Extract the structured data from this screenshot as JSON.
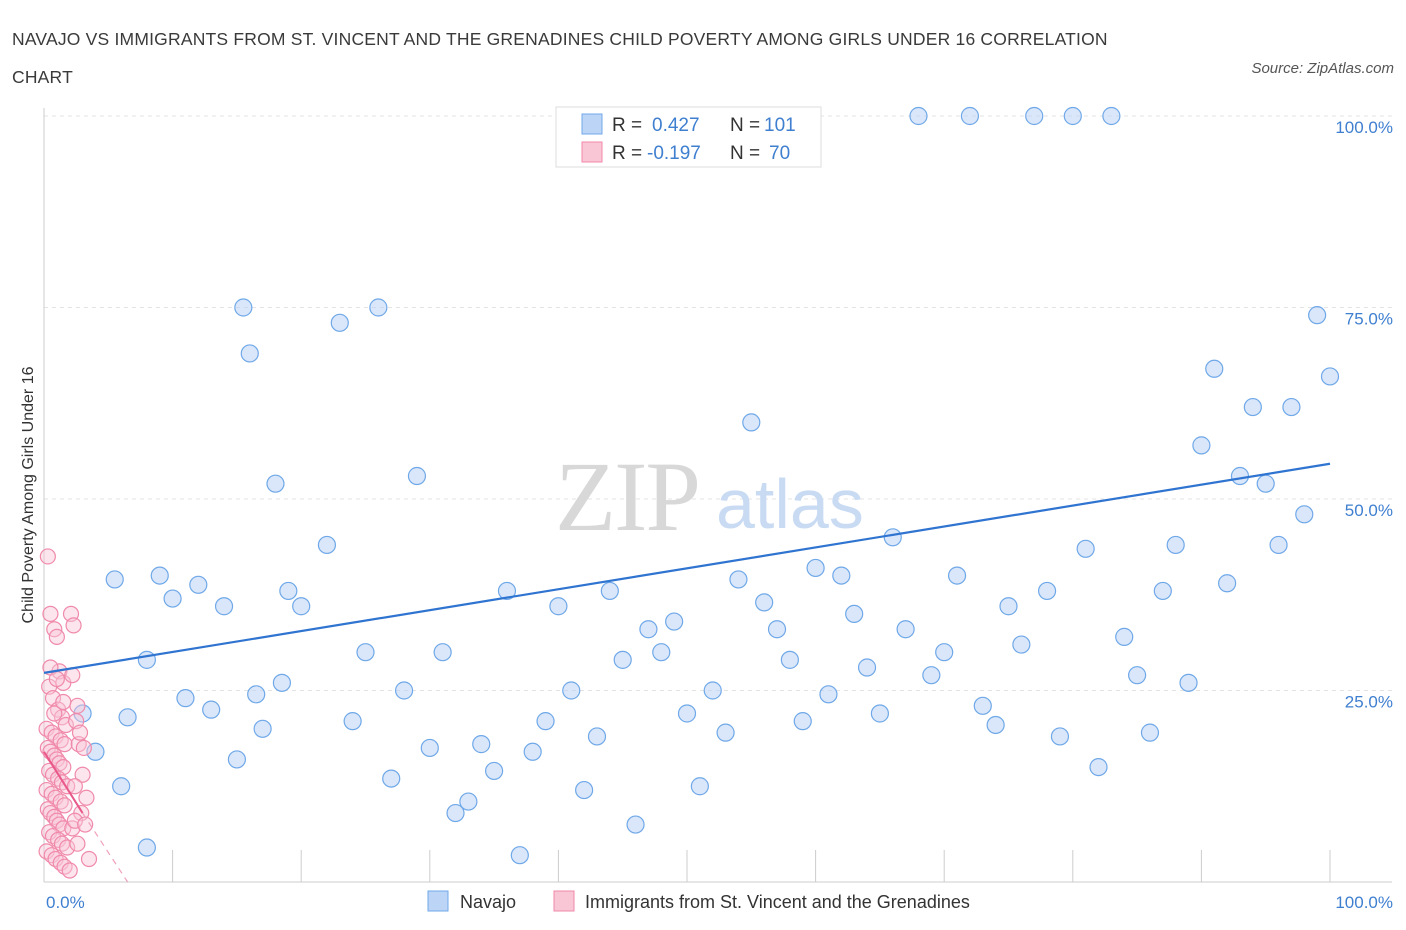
{
  "title": "NAVAJO VS IMMIGRANTS FROM ST. VINCENT AND THE GRENADINES CHILD POVERTY AMONG GIRLS UNDER 16 CORRELATION CHART",
  "source": "Source: ZipAtlas.com",
  "watermark": {
    "zip": "ZIP",
    "atlas": "atlas"
  },
  "chart_data": {
    "type": "scatter",
    "title": "NAVAJO VS IMMIGRANTS FROM ST. VINCENT AND THE GRENADINES CHILD POVERTY AMONG GIRLS UNDER 16 CORRELATION CHART",
    "xlabel": "",
    "ylabel": "Child Poverty Among Girls Under 16",
    "xlim": [
      0,
      100
    ],
    "ylim": [
      0,
      100
    ],
    "x_tick_labels": [
      "0.0%",
      "100.0%"
    ],
    "y_ticks": [
      25,
      50,
      75,
      100
    ],
    "y_tick_labels": [
      "25.0%",
      "50.0%",
      "75.0%",
      "100.0%"
    ],
    "grid": true,
    "legend_position": "top-center",
    "stats": [
      {
        "r_label": "R =",
        "r": "0.427",
        "n_label": "N =",
        "n": "101"
      },
      {
        "r_label": "R =",
        "r": "-0.197",
        "n_label": "N =",
        "n": "70"
      }
    ],
    "series": [
      {
        "name": "Navajo",
        "color": "#6fa8e8",
        "trend": {
          "x": [
            0,
            100
          ],
          "y": [
            27.3,
            54.6
          ]
        },
        "points": [
          [
            5.5,
            39.5
          ],
          [
            6.5,
            21.5
          ],
          [
            8,
            29
          ],
          [
            10,
            37
          ],
          [
            12,
            38.8
          ],
          [
            14,
            36
          ],
          [
            15.5,
            75
          ],
          [
            16,
            69
          ],
          [
            18,
            52
          ],
          [
            19,
            38
          ],
          [
            20,
            36
          ],
          [
            22,
            44
          ],
          [
            23,
            73
          ],
          [
            24,
            21
          ],
          [
            25,
            30
          ],
          [
            26,
            75
          ],
          [
            27,
            13.5
          ],
          [
            28,
            25
          ],
          [
            29,
            53
          ],
          [
            30,
            17.5
          ],
          [
            31,
            30
          ],
          [
            32,
            9
          ],
          [
            33,
            10.5
          ],
          [
            34,
            18
          ],
          [
            35,
            14.5
          ],
          [
            36,
            38
          ],
          [
            37,
            3.5
          ],
          [
            38,
            17
          ],
          [
            39,
            21
          ],
          [
            40,
            36
          ],
          [
            41,
            25
          ],
          [
            42,
            12
          ],
          [
            43,
            19
          ],
          [
            44,
            38
          ],
          [
            45,
            29
          ],
          [
            46,
            7.5
          ],
          [
            47,
            33
          ],
          [
            48,
            30
          ],
          [
            49,
            34
          ],
          [
            50,
            22
          ],
          [
            51,
            12.5
          ],
          [
            52,
            25
          ],
          [
            53,
            19.5
          ],
          [
            54,
            39.5
          ],
          [
            55,
            60
          ],
          [
            56,
            36.5
          ],
          [
            57,
            33
          ],
          [
            58,
            29
          ],
          [
            59,
            21
          ],
          [
            60,
            41
          ],
          [
            61,
            24.5
          ],
          [
            62,
            40
          ],
          [
            63,
            35
          ],
          [
            64,
            28
          ],
          [
            65,
            22
          ],
          [
            66,
            45
          ],
          [
            67,
            33
          ],
          [
            68,
            100
          ],
          [
            69,
            27
          ],
          [
            70,
            30
          ],
          [
            71,
            40
          ],
          [
            72,
            100
          ],
          [
            73,
            23
          ],
          [
            74,
            20.5
          ],
          [
            75,
            36
          ],
          [
            76,
            31
          ],
          [
            77,
            100
          ],
          [
            78,
            38
          ],
          [
            79,
            19
          ],
          [
            80,
            100
          ],
          [
            81,
            43.5
          ],
          [
            82,
            15
          ],
          [
            83,
            100
          ],
          [
            84,
            32
          ],
          [
            85,
            27
          ],
          [
            86,
            19.5
          ],
          [
            87,
            38
          ],
          [
            88,
            44
          ],
          [
            89,
            26
          ],
          [
            90,
            57
          ],
          [
            91,
            67
          ],
          [
            92,
            39
          ],
          [
            93,
            53
          ],
          [
            94,
            62
          ],
          [
            95,
            52
          ],
          [
            96,
            44
          ],
          [
            97,
            62
          ],
          [
            98,
            48
          ],
          [
            99,
            74
          ],
          [
            100,
            66
          ],
          [
            3,
            22
          ],
          [
            4,
            17
          ],
          [
            6,
            12.5
          ],
          [
            8,
            4.5
          ],
          [
            9,
            40
          ],
          [
            11,
            24
          ],
          [
            13,
            22.5
          ],
          [
            15,
            16
          ],
          [
            16.5,
            24.5
          ],
          [
            17,
            20
          ],
          [
            18.5,
            26
          ]
        ]
      },
      {
        "name": "Immigrants from St. Vincent and the Grenadines",
        "color": "#f08aaa",
        "trend": {
          "x": [
            0,
            3
          ],
          "y": [
            17,
            9
          ]
        },
        "trend_dash": {
          "x": [
            3,
            6.5
          ],
          "y": [
            9,
            0
          ]
        },
        "points": [
          [
            0.3,
            42.5
          ],
          [
            0.5,
            35
          ],
          [
            0.8,
            33
          ],
          [
            1,
            32
          ],
          [
            1.2,
            27.5
          ],
          [
            1.5,
            26
          ],
          [
            0.4,
            25.5
          ],
          [
            0.7,
            24
          ],
          [
            1.1,
            22.5
          ],
          [
            1.4,
            21.5
          ],
          [
            1.7,
            20.5
          ],
          [
            0.2,
            20
          ],
          [
            0.6,
            19.5
          ],
          [
            0.9,
            19
          ],
          [
            1.3,
            18.5
          ],
          [
            1.6,
            18
          ],
          [
            0.3,
            17.5
          ],
          [
            0.5,
            17
          ],
          [
            0.8,
            16.5
          ],
          [
            1,
            16
          ],
          [
            1.2,
            15.5
          ],
          [
            1.5,
            15
          ],
          [
            0.4,
            14.5
          ],
          [
            0.7,
            14
          ],
          [
            1.1,
            13.5
          ],
          [
            1.4,
            13
          ],
          [
            1.8,
            12.5
          ],
          [
            0.2,
            12
          ],
          [
            0.6,
            11.5
          ],
          [
            0.9,
            11
          ],
          [
            1.3,
            10.5
          ],
          [
            1.6,
            10
          ],
          [
            0.3,
            9.5
          ],
          [
            0.5,
            9
          ],
          [
            0.8,
            8.5
          ],
          [
            1,
            8
          ],
          [
            1.2,
            7.5
          ],
          [
            1.5,
            7
          ],
          [
            0.4,
            6.5
          ],
          [
            0.7,
            6
          ],
          [
            1.1,
            5.5
          ],
          [
            1.4,
            5
          ],
          [
            1.8,
            4.5
          ],
          [
            0.2,
            4
          ],
          [
            0.6,
            3.5
          ],
          [
            0.9,
            3
          ],
          [
            1.3,
            2.5
          ],
          [
            1.6,
            2
          ],
          [
            2,
            1.5
          ],
          [
            2.2,
            27
          ],
          [
            2.5,
            21
          ],
          [
            2.7,
            18
          ],
          [
            3,
            14
          ],
          [
            2.1,
            35
          ],
          [
            2.3,
            33.5
          ],
          [
            2.6,
            23
          ],
          [
            2.8,
            19.5
          ],
          [
            3.1,
            17.5
          ],
          [
            2.4,
            12.5
          ],
          [
            2.9,
            9
          ],
          [
            3.3,
            11
          ],
          [
            2.2,
            7
          ],
          [
            2.6,
            5
          ],
          [
            3.5,
            3
          ],
          [
            0.5,
            28
          ],
          [
            1,
            26.5
          ],
          [
            1.5,
            23.5
          ],
          [
            0.8,
            22
          ],
          [
            2.4,
            8
          ],
          [
            3.2,
            7.5
          ]
        ]
      }
    ]
  }
}
